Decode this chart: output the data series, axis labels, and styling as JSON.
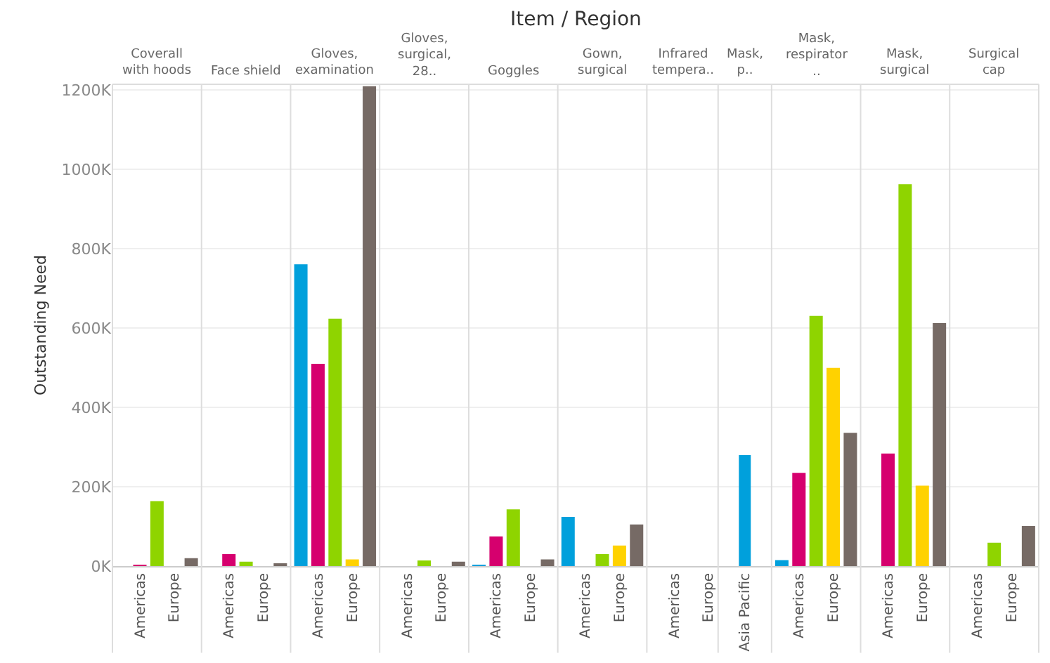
{
  "chart_data": [
    {
      "type": "other",
      "title": "Item / Region"
    },
    {
      "type": "bar",
      "title": "Coverall with hoods",
      "ylabel": "Outstanding Need",
      "categories": [
        null,
        "Americas",
        null,
        "Europe",
        null
      ],
      "values": [
        null,
        3,
        164,
        null,
        20
      ],
      "colors": [
        "#00a0dc",
        "#d6006e",
        "#8fd400",
        "#ffd200",
        "#766a65"
      ],
      "ylim": [
        0,
        1215
      ],
      "yticks": [
        {
          "value": 0,
          "label": "0K"
        },
        {
          "value": 200,
          "label": "200K"
        },
        {
          "value": 400,
          "label": "400K"
        },
        {
          "value": 600,
          "label": "600K"
        },
        {
          "value": 800,
          "label": "800K"
        },
        {
          "value": 1000,
          "label": "1000K"
        },
        {
          "value": 1200,
          "label": "1200K"
        }
      ],
      "grid": "y"
    },
    {
      "type": "bar",
      "title": "Face shield",
      "categories": [
        null,
        "Americas",
        null,
        "Europe",
        null
      ],
      "values": [
        null,
        30,
        11,
        null,
        7
      ],
      "colors": [
        "#00a0dc",
        "#d6006e",
        "#8fd400",
        "#ffd200",
        "#766a65"
      ],
      "ylim": [
        0,
        1215
      ],
      "yticks": [
        0,
        200,
        400,
        600,
        800,
        1000,
        1200
      ],
      "grid": "y",
      "tick_labels": "x"
    },
    {
      "type": "bar",
      "title": "Gloves, examination",
      "categories": [
        null,
        "Americas",
        null,
        "Europe",
        null
      ],
      "values": [
        761,
        510,
        624,
        17,
        1210
      ],
      "colors": [
        "#00a0dc",
        "#d6006e",
        "#8fd400",
        "#ffd200",
        "#766a65"
      ],
      "ylim": [
        0,
        1215
      ],
      "yticks": [
        0,
        200,
        400,
        600,
        800,
        1000,
        1200
      ],
      "grid": "y",
      "tick_labels": "x"
    },
    {
      "type": "bar",
      "title": "Gloves, surgical, 28..",
      "categories": [
        null,
        "Americas",
        null,
        "Europe",
        null
      ],
      "values": [
        null,
        null,
        14,
        null,
        11
      ],
      "colors": [
        "#00a0dc",
        "#d6006e",
        "#8fd400",
        "#ffd200",
        "#766a65"
      ],
      "ylim": [
        0,
        1215
      ],
      "yticks": [
        0,
        200,
        400,
        600,
        800,
        1000,
        1200
      ],
      "grid": "y",
      "tick_labels": "x"
    },
    {
      "type": "bar",
      "title": "Goggles",
      "categories": [
        null,
        "Americas",
        null,
        "Europe",
        null
      ],
      "values": [
        3,
        75,
        143,
        null,
        17
      ],
      "colors": [
        "#00a0dc",
        "#d6006e",
        "#8fd400",
        "#ffd200",
        "#766a65"
      ],
      "ylim": [
        0,
        1215
      ],
      "yticks": [
        0,
        200,
        400,
        600,
        800,
        1000,
        1200
      ],
      "grid": "y",
      "tick_labels": "x"
    },
    {
      "type": "bar",
      "title": "Gown, surgical",
      "categories": [
        null,
        "Americas",
        null,
        "Europe",
        null
      ],
      "values": [
        124,
        null,
        30,
        52,
        105
      ],
      "colors": [
        "#00a0dc",
        "#d6006e",
        "#8fd400",
        "#ffd200",
        "#766a65"
      ],
      "ylim": [
        0,
        1215
      ],
      "yticks": [
        0,
        200,
        400,
        600,
        800,
        1000,
        1200
      ],
      "grid": "y",
      "tick_labels": "x"
    },
    {
      "type": "bar",
      "title": "Infrared tempera..",
      "categories": [
        null,
        "Americas",
        null,
        "Europe"
      ],
      "values": [
        null,
        null,
        null,
        null
      ],
      "colors": [
        "#00a0dc",
        "#d6006e",
        "#8fd400",
        "#ffd200"
      ],
      "ylim": [
        0,
        1215
      ],
      "yticks": [
        0,
        200,
        400,
        600,
        800,
        1000,
        1200
      ],
      "grid": "y",
      "tick_labels": "x"
    },
    {
      "type": "bar",
      "title": "Mask, p..",
      "categories": [
        "Asia Pacific"
      ],
      "values": [
        280
      ],
      "colors": [
        "#00a0dc"
      ],
      "ylim": [
        0,
        1215
      ],
      "yticks": [
        0,
        200,
        400,
        600,
        800,
        1000,
        1200
      ],
      "grid": "y",
      "tick_labels": "x"
    },
    {
      "type": "bar",
      "title": "Mask, respirator ..",
      "categories": [
        null,
        "Americas",
        null,
        "Europe",
        null
      ],
      "values": [
        15,
        235,
        631,
        500,
        336
      ],
      "colors": [
        "#00a0dc",
        "#d6006e",
        "#8fd400",
        "#ffd200",
        "#766a65"
      ],
      "ylim": [
        0,
        1215
      ],
      "yticks": [
        0,
        200,
        400,
        600,
        800,
        1000,
        1200
      ],
      "grid": "y",
      "tick_labels": "x"
    },
    {
      "type": "bar",
      "title": "Mask, surgical",
      "categories": [
        null,
        "Americas",
        null,
        "Europe",
        null
      ],
      "values": [
        null,
        284,
        963,
        203,
        613
      ],
      "colors": [
        "#00a0dc",
        "#d6006e",
        "#8fd400",
        "#ffd200",
        "#766a65"
      ],
      "ylim": [
        0,
        1215
      ],
      "yticks": [
        0,
        200,
        400,
        600,
        800,
        1000,
        1200
      ],
      "grid": "y",
      "tick_labels": "x"
    },
    {
      "type": "bar",
      "title": "Surgical cap",
      "categories": [
        null,
        "Americas",
        null,
        "Europe",
        null
      ],
      "values": [
        null,
        null,
        59,
        null,
        101
      ],
      "colors": [
        "#00a0dc",
        "#d6006e",
        "#8fd400",
        "#ffd200",
        "#766a65"
      ],
      "ylim": [
        0,
        1215
      ],
      "yticks": [
        0,
        200,
        400,
        600,
        800,
        1000,
        1200
      ],
      "grid": "y",
      "tick_labels": "x"
    }
  ]
}
